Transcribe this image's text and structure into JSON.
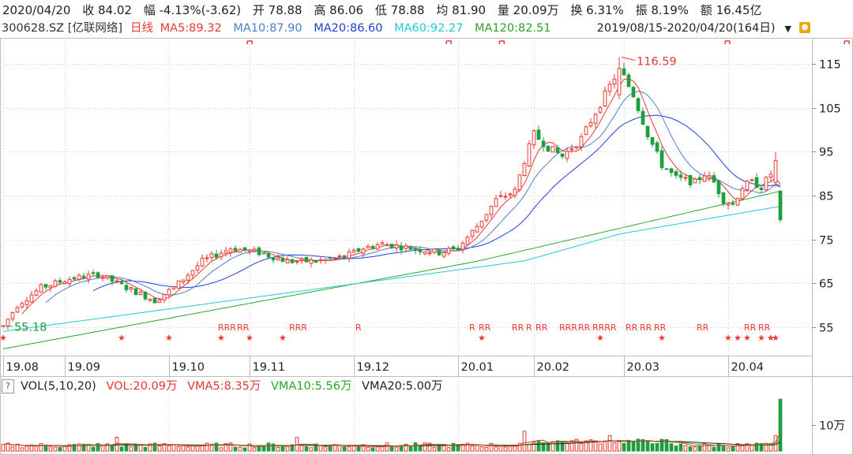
{
  "info": {
    "date": "2020/04/20",
    "close": "收 84.02",
    "change": "幅 -4.13%(-3.62)",
    "open": "开 78.88",
    "high": "高 86.06",
    "low": "低 78.88",
    "avg": "均 81.90",
    "volume": "量 20.09万",
    "turnover": "换 6.31%",
    "amplitude": "振 8.19%",
    "amount": "额 16.45亿"
  },
  "ma_bar": {
    "ticker": "300628.SZ [亿联网络]",
    "period": "日线",
    "ma5": "MA5:89.32",
    "ma10": "MA10:87.90",
    "ma20": "MA20:86.60",
    "ma60": "MA60:92.27",
    "ma120": "MA120:82.51",
    "range": "2019/08/15-2020/04/20(164日)"
  },
  "vol_bar": {
    "help": "?",
    "title": "VOL(5,10,20)",
    "vol": "VOL:20.09万",
    "vma5": "VMA5:8.35万",
    "vma10": "VMA10:5.56万",
    "vma20": "VMA20:5.00万"
  },
  "colors": {
    "up": "#e8382f",
    "down": "#1e9e3c",
    "ma5": "#e8382f",
    "ma10": "#4a7fd0",
    "ma20": "#1f3fd8",
    "ma60": "#21c9d6",
    "ma120": "#2aa52a",
    "grid": "#c8c8c8"
  },
  "chart_data": {
    "type": "candlestick",
    "y_ticks": [
      115,
      105,
      95,
      85,
      75,
      65,
      55
    ],
    "ylim": [
      49,
      121
    ],
    "x_ticks": [
      {
        "label": "19.08",
        "i": 0
      },
      {
        "label": "19.09",
        "i": 13
      },
      {
        "label": "19.10",
        "i": 35
      },
      {
        "label": "19.11",
        "i": 52
      },
      {
        "label": "19.12",
        "i": 74
      },
      {
        "label": "20.01",
        "i": 96
      },
      {
        "label": "20.02",
        "i": 112
      },
      {
        "label": "20.03",
        "i": 131
      },
      {
        "label": "20.04",
        "i": 153
      }
    ],
    "annotations": [
      {
        "label": "116.59",
        "i": 130,
        "value": 116.59
      },
      {
        "label": "55.18",
        "i": 0,
        "value": 55.18
      }
    ],
    "markers": [
      {
        "label": "RRR",
        "i": 46
      },
      {
        "label": "RR",
        "i": 50
      },
      {
        "label": "RRR",
        "i": 61
      },
      {
        "label": "R",
        "i": 75
      },
      {
        "label": "R",
        "i": 99
      },
      {
        "label": "RR",
        "i": 101
      },
      {
        "label": "RR",
        "i": 108
      },
      {
        "label": "R",
        "i": 111
      },
      {
        "label": "RR",
        "i": 113
      },
      {
        "label": "RRR",
        "i": 118
      },
      {
        "label": "RR",
        "i": 122
      },
      {
        "label": "RRRR",
        "i": 125
      },
      {
        "label": "RR",
        "i": 132
      },
      {
        "label": "RR",
        "i": 135
      },
      {
        "label": "RR",
        "i": 138
      },
      {
        "label": "RR",
        "i": 147
      },
      {
        "label": "RR",
        "i": 157
      },
      {
        "label": "RR",
        "i": 160
      }
    ],
    "stars": [
      0,
      25,
      35,
      46,
      52,
      59,
      101,
      126,
      139,
      153,
      155,
      157,
      160,
      162,
      163
    ],
    "vol_ticks": [
      {
        "label": "10万",
        "value": 10
      }
    ],
    "vol_max": 22
  }
}
